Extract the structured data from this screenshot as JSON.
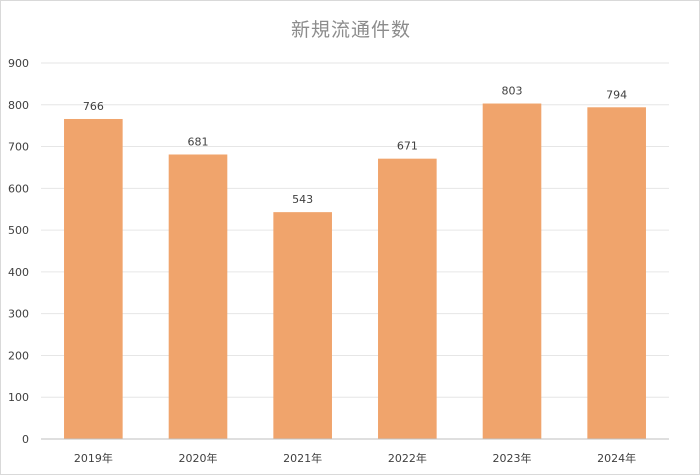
{
  "chart_data": {
    "type": "bar",
    "title": "新規流通件数",
    "categories": [
      "2019年",
      "2020年",
      "2021年",
      "2022年",
      "2023年",
      "2024年"
    ],
    "values": [
      766,
      681,
      543,
      671,
      803,
      794
    ],
    "ylim": [
      0,
      900
    ],
    "y_ticks": [
      0,
      100,
      200,
      300,
      400,
      500,
      600,
      700,
      800,
      900
    ],
    "xlabel": "",
    "ylabel": "",
    "grid": true,
    "legend": "none",
    "data_labels": true,
    "bar_color": "#F0A46C",
    "grid_color": "#e6e6e6",
    "axis_color": "#bfbfbf",
    "label_color": "#404040",
    "title_color": "#8c8c8c"
  }
}
